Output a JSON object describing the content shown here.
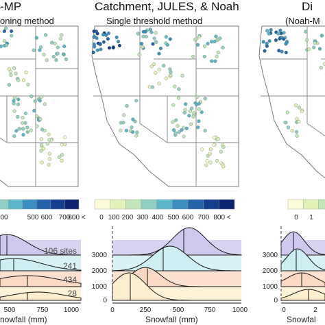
{
  "panels": {
    "left": {
      "title": "-MP",
      "subtitle": "oning method"
    },
    "middle": {
      "title": "Catchment, JULES, & Noah",
      "subtitle": "Single threshold method"
    },
    "right": {
      "title": "Di",
      "subtitle": "(Noah-M"
    }
  },
  "colorbar_ticks": {
    "left": [
      "00",
      "500",
      "600",
      "700",
      "800 <"
    ],
    "middle": [
      "0",
      "100",
      "200",
      "300",
      "400",
      "500",
      "600",
      "700",
      "800 <"
    ],
    "right": [
      "0",
      "1"
    ]
  },
  "colors": {
    "scale": [
      "#fbfbd7",
      "#e3f2b9",
      "#c2e5b9",
      "#8fd0c3",
      "#5cb6c9",
      "#3a8fc0",
      "#2563a8",
      "#153e8f",
      "#0b2570"
    ],
    "ridges": [
      "#cdc9ee",
      "#cdeef2",
      "#fbd9c5",
      "#fdefce"
    ]
  },
  "chart_data": [
    {
      "type": "ridgeline",
      "panel": "left",
      "xlabel": "nowfall (mm)",
      "x_ticks": [
        "500",
        "750",
        "1000"
      ],
      "site_labels": [
        "106 sites",
        "241",
        "434",
        "28"
      ]
    },
    {
      "type": "ridgeline",
      "panel": "middle",
      "xlabel": "Snowfall (mm)",
      "y_ticks": [
        "3000",
        "2000",
        "1000",
        "0"
      ],
      "x_ticks": [
        "0",
        "250",
        "500",
        "750",
        "1000"
      ]
    },
    {
      "type": "ridgeline",
      "panel": "right",
      "xlabel": "Snowfal",
      "y_ticks": [
        "3000",
        "2000",
        "1000",
        "0"
      ],
      "x_ticks": [
        "0",
        "2"
      ]
    }
  ]
}
